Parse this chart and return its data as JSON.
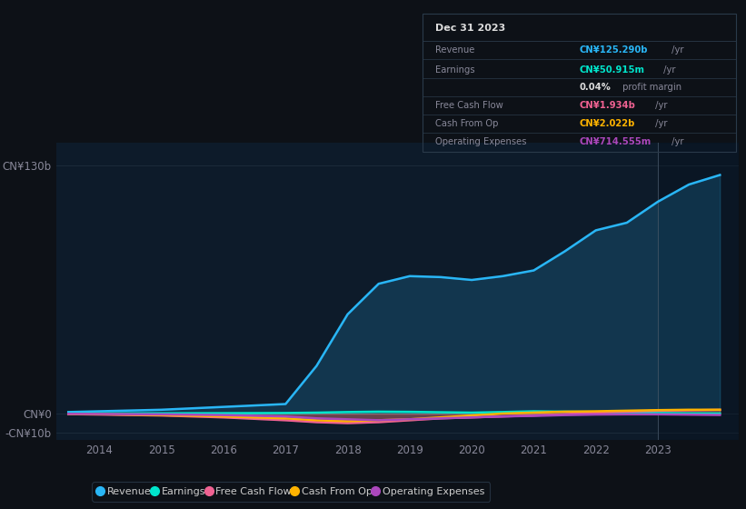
{
  "bg_color": "#0d1117",
  "plot_bg_color": "#0d1b2a",
  "grid_color": "#1e2d3d",
  "text_color": "#888899",
  "years": [
    2013.5,
    2014,
    2015,
    2016,
    2017,
    2017.5,
    2018,
    2018.5,
    2019,
    2019.5,
    2020,
    2020.5,
    2021,
    2021.5,
    2022,
    2022.5,
    2023,
    2023.5,
    2024.0
  ],
  "revenue": [
    0.8,
    1.2,
    2.0,
    3.5,
    5.0,
    25.0,
    52.0,
    68.0,
    72.0,
    71.5,
    70.0,
    72.0,
    75.0,
    85.0,
    96.0,
    100.0,
    111.0,
    120.0,
    125.0
  ],
  "earnings": [
    0.05,
    0.1,
    0.15,
    0.2,
    0.3,
    0.5,
    0.8,
    1.0,
    0.9,
    0.7,
    0.5,
    0.8,
    1.2,
    1.0,
    0.8,
    0.5,
    0.3,
    0.1,
    0.051
  ],
  "free_cash_flow": [
    -0.3,
    -0.5,
    -1.0,
    -2.0,
    -3.5,
    -4.5,
    -5.0,
    -4.5,
    -3.5,
    -2.5,
    -2.0,
    -1.5,
    -1.0,
    -0.3,
    0.5,
    1.0,
    1.5,
    1.7,
    1.934
  ],
  "cash_from_op": [
    -0.2,
    -0.3,
    -0.8,
    -1.5,
    -2.5,
    -3.5,
    -4.0,
    -3.5,
    -3.0,
    -2.0,
    -1.0,
    0.0,
    0.5,
    1.0,
    1.2,
    1.5,
    1.8,
    2.0,
    2.022
  ],
  "operating_expenses": [
    -0.15,
    -0.2,
    -0.4,
    -0.8,
    -1.5,
    -2.5,
    -3.0,
    -3.5,
    -3.0,
    -2.5,
    -2.0,
    -1.5,
    -1.2,
    -0.8,
    -0.5,
    -0.4,
    -0.4,
    -0.55,
    -0.715
  ],
  "revenue_color": "#29b6f6",
  "earnings_color": "#00e5cc",
  "free_cash_flow_color": "#f06292",
  "cash_from_op_color": "#ffb300",
  "operating_expenses_color": "#ab47bc",
  "ylim_min": -14,
  "ylim_max": 142,
  "y_label_130": "CN¥130b",
  "y_label_0": "CN¥0",
  "y_label_neg10": "-CN¥10b",
  "x_ticks": [
    2014,
    2015,
    2016,
    2017,
    2018,
    2019,
    2020,
    2021,
    2022,
    2023
  ],
  "xlim_min": 2013.3,
  "xlim_max": 2024.3,
  "line_width": 1.8,
  "shade_alpha": 0.18,
  "info_box_title": "Dec 31 2023",
  "info_rows": [
    {
      "label": "Revenue",
      "value": "CN¥125.290b",
      "suffix": " /yr",
      "color": "#29b6f6"
    },
    {
      "label": "Earnings",
      "value": "CN¥50.915m",
      "suffix": " /yr",
      "color": "#00e5cc"
    },
    {
      "label": "",
      "value": "0.04%",
      "suffix": " profit margin",
      "color": "#dddddd"
    },
    {
      "label": "Free Cash Flow",
      "value": "CN¥1.934b",
      "suffix": " /yr",
      "color": "#f06292"
    },
    {
      "label": "Cash From Op",
      "value": "CN¥2.022b",
      "suffix": " /yr",
      "color": "#ffb300"
    },
    {
      "label": "Operating Expenses",
      "value": "CN¥714.555m",
      "suffix": " /yr",
      "color": "#ab47bc"
    }
  ],
  "legend": [
    {
      "label": "Revenue",
      "color": "#29b6f6"
    },
    {
      "label": "Earnings",
      "color": "#00e5cc"
    },
    {
      "label": "Free Cash Flow",
      "color": "#f06292"
    },
    {
      "label": "Cash From Op",
      "color": "#ffb300"
    },
    {
      "label": "Operating Expenses",
      "color": "#ab47bc"
    }
  ]
}
